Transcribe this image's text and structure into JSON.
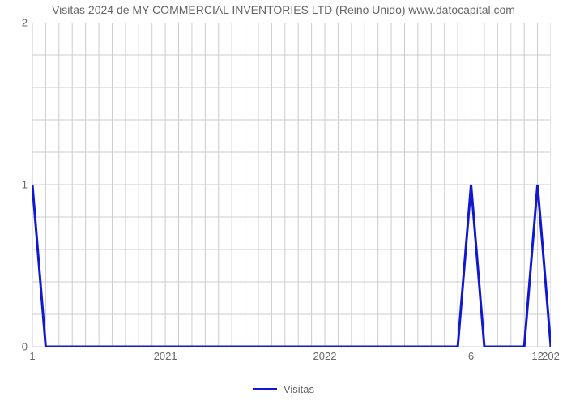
{
  "chart": {
    "type": "line",
    "title": "Visitas 2024 de MY COMMERCIAL INVENTORIES LTD (Reino Unido) www.datocapital.com",
    "title_fontsize": 14,
    "title_color": "#666666",
    "background_color": "#ffffff",
    "plot_area_fill": "#ffffff",
    "grid_color": "#cccccc",
    "grid_line_width": 1,
    "border_color": "#cccccc",
    "tick_color": "#666666",
    "tick_label_color": "#666666",
    "minor_tick_color": "#666666",
    "y": {
      "min": 0,
      "max": 2,
      "major_ticks": [
        0,
        1,
        2
      ],
      "minor_sub": 5,
      "label_fontsize": 13
    },
    "x": {
      "n_points": 40,
      "major_labels": [
        {
          "i": 0,
          "label": "1"
        },
        {
          "i": 10,
          "label": "2021"
        },
        {
          "i": 22,
          "label": "2022"
        },
        {
          "i": 33,
          "label": "6"
        },
        {
          "i": 38,
          "label": "12"
        },
        {
          "i": 39,
          "label": "202"
        }
      ],
      "minor_every": 1,
      "label_fontsize": 13
    },
    "series": {
      "name": "Visitas",
      "color": "#1118cf",
      "line_width": 3,
      "values": [
        1,
        0,
        0,
        0,
        0,
        0,
        0,
        0,
        0,
        0,
        0,
        0,
        0,
        0,
        0,
        0,
        0,
        0,
        0,
        0,
        0,
        0,
        0,
        0,
        0,
        0,
        0,
        0,
        0,
        0,
        0,
        0,
        0,
        1,
        0,
        0,
        0,
        0,
        1,
        0
      ]
    },
    "legend": {
      "position": "bottom-center",
      "label": "Visitas",
      "swatch_color": "#1118cf",
      "text_color": "#666666",
      "fontsize": 13
    }
  }
}
